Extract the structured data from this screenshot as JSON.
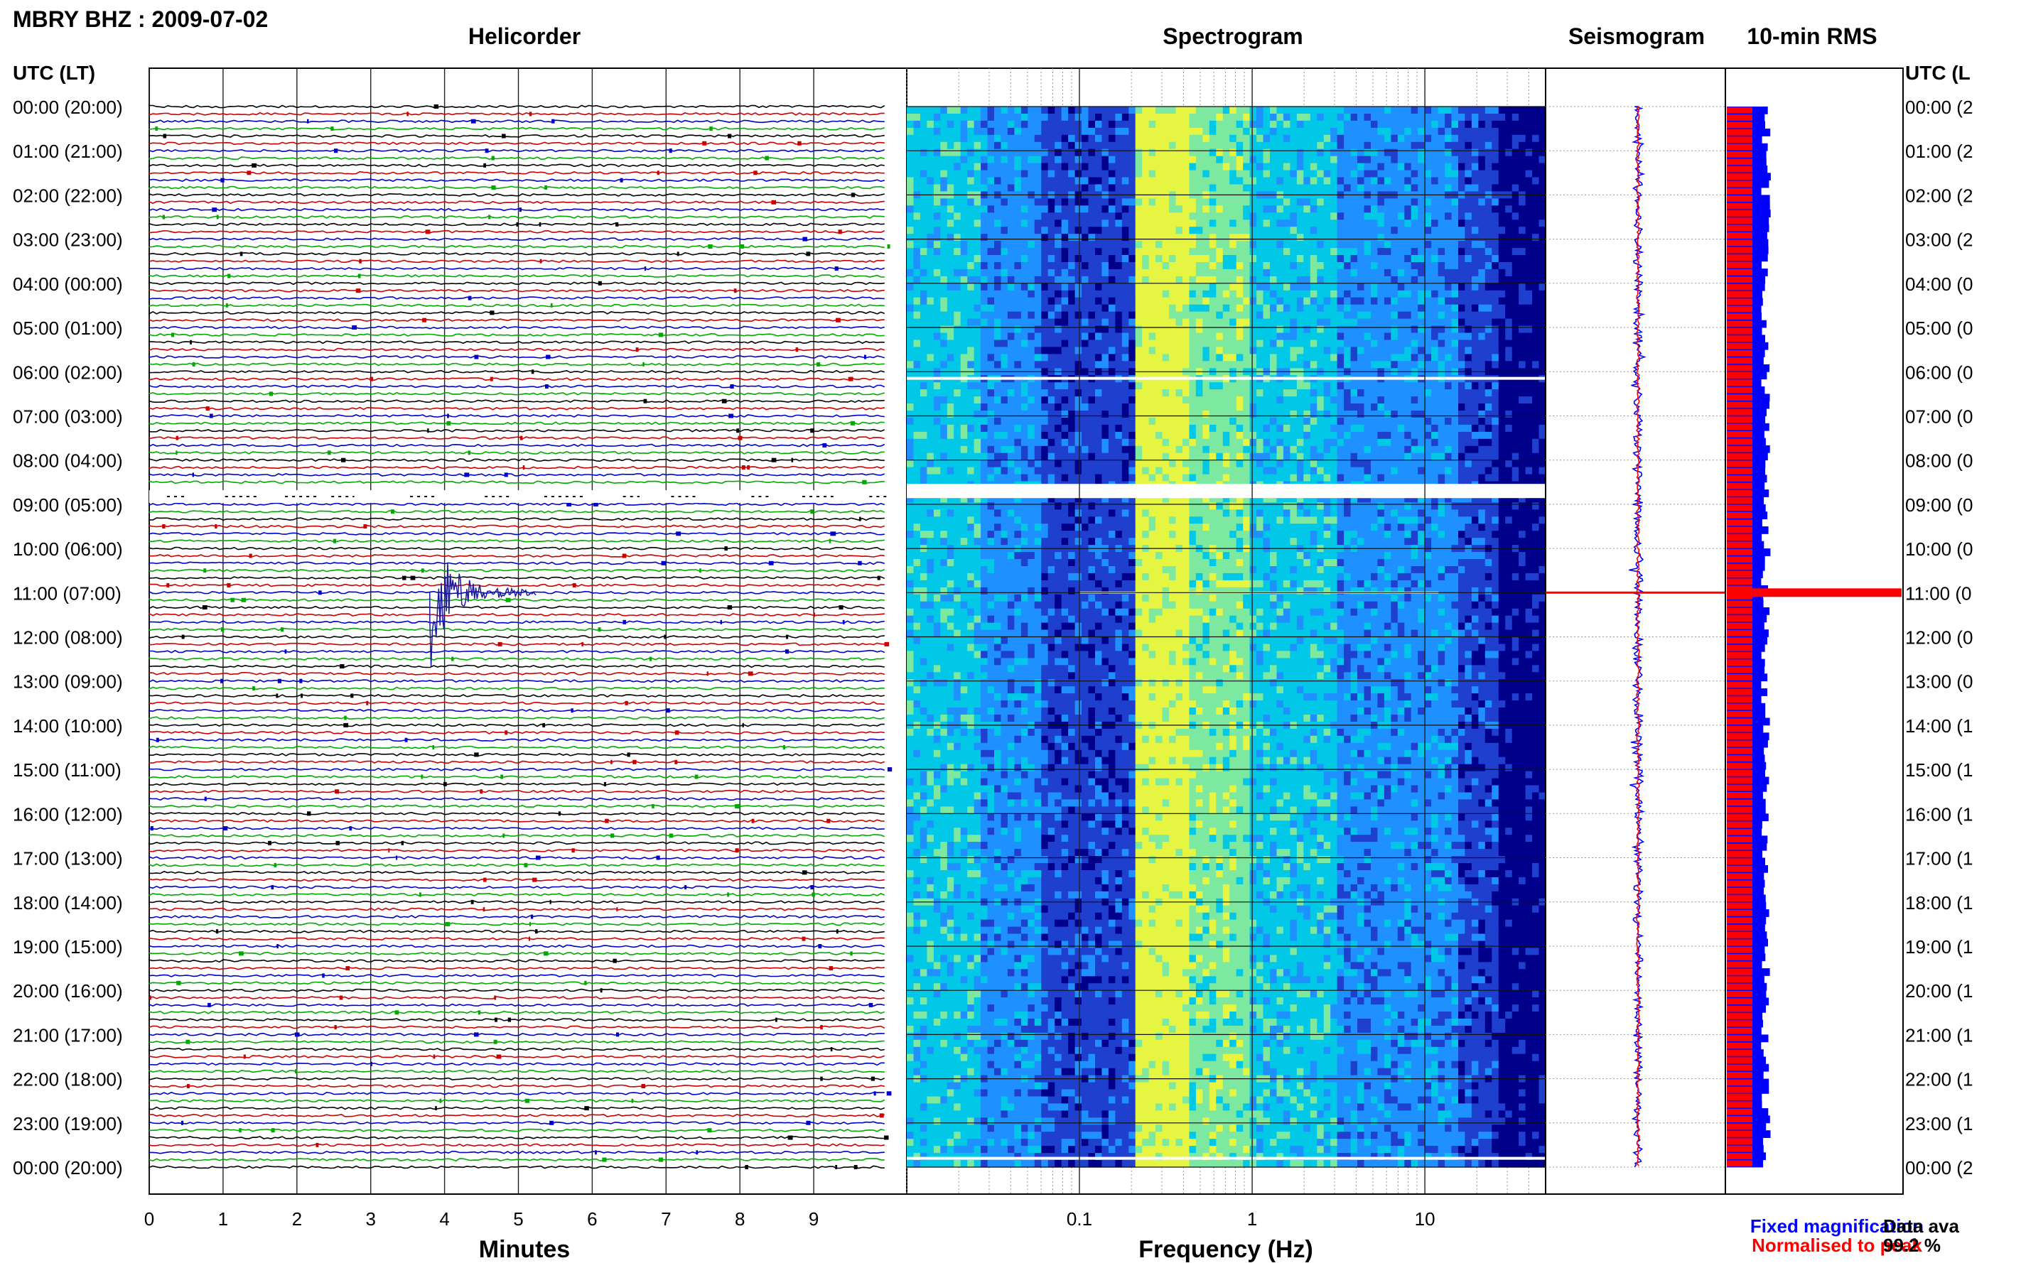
{
  "header": {
    "station_title": "MBRY BHZ : 2009-07-02"
  },
  "panels": {
    "helicorder_title": "Helicorder",
    "spectrogram_title": "Spectrogram",
    "seismogram_title": "Seismogram",
    "rms_title": "10-min RMS"
  },
  "axes": {
    "left_label": "UTC (LT)",
    "right_label": "UTC (L",
    "helicorder_xlabel": "Minutes",
    "spectrogram_xlabel": "Frequency (Hz)"
  },
  "legend": {
    "fixed_label": "Fixed magnification",
    "normalised_label": "Normalised to peak",
    "data_availability_label": "Data ava",
    "data_availability_value": "99.2 %"
  },
  "chart_data": [
    {
      "type": "line",
      "name": "helicorder",
      "title": "Helicorder",
      "xlabel": "Minutes",
      "x_ticks": [
        0,
        1,
        2,
        3,
        4,
        5,
        6,
        7,
        8,
        9
      ],
      "xlim": [
        0,
        10
      ],
      "row_labels": [
        "00:00 (20:00)",
        "01:00 (21:00)",
        "02:00 (22:00)",
        "03:00 (23:00)",
        "04:00 (00:00)",
        "05:00 (01:00)",
        "06:00 (02:00)",
        "07:00 (03:00)",
        "08:00 (04:00)",
        "09:00 (05:00)",
        "10:00 (06:00)",
        "11:00 (07:00)",
        "12:00 (08:00)",
        "13:00 (09:00)",
        "14:00 (10:00)",
        "15:00 (11:00)",
        "16:00 (12:00)",
        "17:00 (13:00)",
        "18:00 (14:00)",
        "19:00 (15:00)",
        "20:00 (16:00)",
        "21:00 (17:00)",
        "22:00 (18:00)",
        "23:00 (19:00)",
        "00:00 (20:00)"
      ],
      "right_row_labels": [
        "00:00 (2",
        "01:00 (2",
        "02:00 (2",
        "03:00 (2",
        "04:00 (0",
        "05:00 (0",
        "06:00 (0",
        "07:00 (0",
        "08:00 (0",
        "09:00 (0",
        "10:00 (0",
        "11:00 (0",
        "12:00 (0",
        "13:00 (0",
        "14:00 (1",
        "15:00 (1",
        "16:00 (1",
        "17:00 (1",
        "18:00 (1",
        "19:00 (1",
        "20:00 (1",
        "21:00 (1",
        "22:00 (1",
        "23:00 (1",
        "00:00 (2"
      ],
      "traces_per_hour": 6,
      "trace_colors": [
        "#000000",
        "#cc0000",
        "#0000cc",
        "#00aa00"
      ],
      "data_gap": {
        "start_hour": 8.65,
        "end_hour": 9.0
      },
      "event": {
        "hour": 11.0,
        "minute": 3.8,
        "label": "earthquake"
      }
    },
    {
      "type": "heatmap",
      "name": "spectrogram",
      "title": "Spectrogram",
      "xlabel": "Frequency (Hz)",
      "x_scale": "log",
      "x_ticks": [
        0.1,
        1,
        10
      ],
      "x_tick_labels": [
        "0.1",
        "1",
        "10"
      ],
      "xlim": [
        0.01,
        50
      ],
      "colormap": [
        "#00008b",
        "#1f3fcf",
        "#1e90ff",
        "#00c8e6",
        "#7de8a0",
        "#e6f542"
      ],
      "bright_band_hz": [
        0.2,
        0.9
      ],
      "gaps_hours": [
        6.15,
        8.7,
        23.8
      ]
    },
    {
      "type": "line",
      "name": "seismogram",
      "title": "Seismogram",
      "series": [
        {
          "name": "Fixed magnification",
          "color": "#0000ff"
        },
        {
          "name": "Normalised to peak",
          "color": "#ff0000"
        }
      ],
      "spike_hour": 11.0
    },
    {
      "type": "bar",
      "name": "10-min RMS",
      "title": "10-min RMS",
      "orientation": "horizontal",
      "series": [
        {
          "name": "Fixed magnification",
          "color": "#0000ff"
        },
        {
          "name": "Normalised to peak",
          "color": "#ff0000"
        }
      ],
      "spike_hour": 11.0
    }
  ]
}
